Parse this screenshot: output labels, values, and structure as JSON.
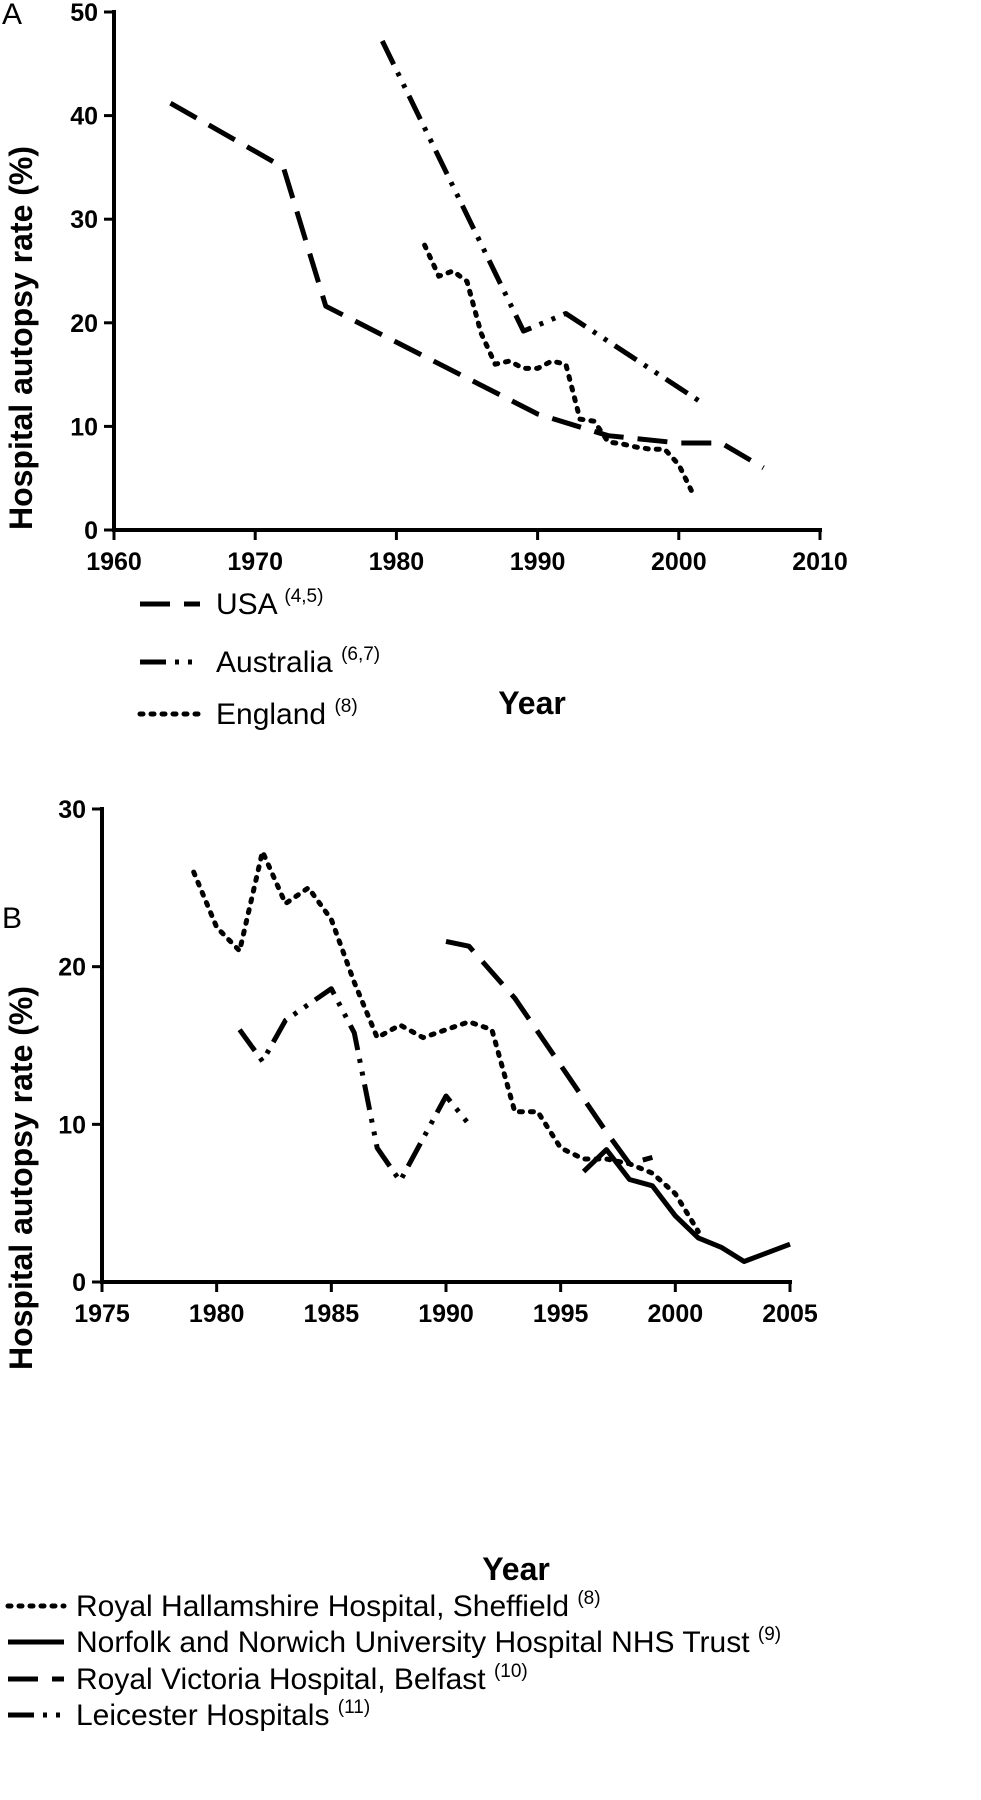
{
  "chart_data": [
    {
      "panel": "A",
      "type": "line",
      "xlabel": "Year",
      "ylabel": "Hospital autopsy rate (%)",
      "xlim": [
        1960,
        2010
      ],
      "ylim": [
        0,
        50
      ],
      "x_ticks": [
        "1960",
        "1970",
        "1980",
        "1990",
        "2000",
        "2010"
      ],
      "y_ticks": [
        "0",
        "10",
        "20",
        "30",
        "40",
        "50"
      ],
      "legend_placement": "bottom-left",
      "series": [
        {
          "name": "USA",
          "ref": "(4,5)",
          "style": "dash",
          "x": [
            1964,
            1972,
            1975,
            1990,
            1995,
            2000,
            2003,
            2006
          ],
          "y": [
            41.2,
            35,
            21.6,
            11.2,
            9.1,
            8.4,
            8.4,
            6
          ]
        },
        {
          "name": "Australia",
          "ref": "(6,7)",
          "style": "dashdotdot",
          "x": [
            1979,
            1989,
            1992,
            2001.5
          ],
          "y": [
            47.2,
            19.2,
            20.9,
            12.4
          ]
        },
        {
          "name": "England",
          "ref": "(8)",
          "style": "dot",
          "x": [
            1982,
            1983,
            1984,
            1985,
            1986,
            1987,
            1988,
            1989,
            1990,
            1991,
            1992,
            1993,
            1994,
            1995,
            1996,
            1997,
            1998,
            1999,
            2000,
            2001
          ],
          "y": [
            27.5,
            24.5,
            25,
            24,
            19,
            16,
            16.3,
            15.6,
            15.6,
            16.3,
            16,
            10.7,
            10.5,
            8.5,
            8.3,
            8,
            7.8,
            7.8,
            6.3,
            3.5
          ]
        }
      ]
    },
    {
      "panel": "B",
      "type": "line",
      "xlabel": "Year",
      "ylabel": "Hospital autopsy rate (%)",
      "xlim": [
        1975,
        2005
      ],
      "ylim": [
        0,
        30
      ],
      "x_ticks": [
        "1975",
        "1980",
        "1985",
        "1990",
        "1995",
        "2000",
        "2005"
      ],
      "y_ticks": [
        "0",
        "10",
        "20",
        "30"
      ],
      "legend_placement": "bottom-left",
      "series": [
        {
          "name": "Royal Hallamshire Hospital, Sheffield",
          "ref": "(8)",
          "style": "dot",
          "x": [
            1979,
            1980,
            1981,
            1982,
            1983,
            1984,
            1985,
            1986,
            1987,
            1988,
            1989,
            1990,
            1991,
            1992,
            1993,
            1994,
            1995,
            1996,
            1997,
            1998,
            1999,
            2000,
            2001
          ],
          "y": [
            26,
            22.5,
            21,
            27.3,
            24,
            25,
            23,
            19,
            15.5,
            16.3,
            15.5,
            16,
            16.5,
            16,
            10.8,
            10.8,
            8.5,
            7.8,
            7.8,
            7.5,
            6.9,
            5.6,
            3.2
          ]
        },
        {
          "name": "Norfolk and Norwich University Hospital NHS Trust",
          "ref": "(9)",
          "style": "solid",
          "x": [
            1996,
            1997,
            1998,
            1999,
            2000,
            2001,
            2002,
            2003,
            2005
          ],
          "y": [
            7,
            8.4,
            6.5,
            6.1,
            4.2,
            2.8,
            2.2,
            1.3,
            2.4
          ]
        },
        {
          "name": "Royal Victoria Hospital, Belfast",
          "ref": "(10)",
          "style": "dash",
          "x": [
            1990,
            1991,
            1993,
            1997,
            1998,
            1999
          ],
          "y": [
            21.6,
            21.3,
            18,
            9.5,
            7.5,
            7.9
          ]
        },
        {
          "name": "Leicester Hospitals",
          "ref": "(11)",
          "style": "dashdotdot",
          "x": [
            1981,
            1982,
            1983,
            1985,
            1986,
            1987,
            1988,
            1990,
            1991
          ],
          "y": [
            16,
            14,
            16.6,
            18.6,
            15.8,
            8.5,
            6.4,
            11.8,
            10
          ]
        }
      ]
    }
  ]
}
